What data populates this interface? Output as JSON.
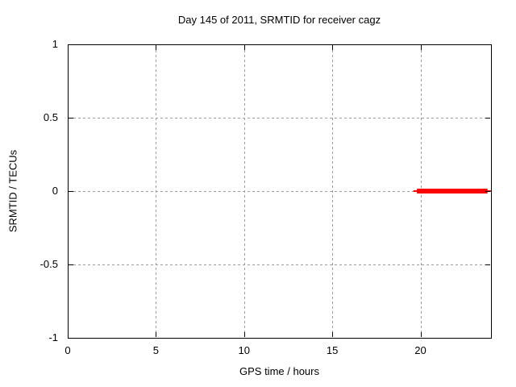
{
  "window": {
    "background_color": "#ffffff"
  },
  "chart_data": {
    "type": "line",
    "title": "Day 145 of 2011, SRMTID for receiver cagz",
    "xlabel": "GPS time / hours",
    "ylabel": "SRMTID / TECUs",
    "xlim": [
      0,
      24
    ],
    "ylim": [
      -1,
      1
    ],
    "xticks": [
      0,
      5,
      10,
      15,
      20
    ],
    "xtick_labels": [
      "0",
      "5",
      "10",
      "15",
      "20"
    ],
    "yticks": [
      -1,
      -0.5,
      0,
      0.5,
      1
    ],
    "ytick_labels": [
      "-1",
      "-0.5",
      "0",
      "0.5",
      "1"
    ],
    "grid": "on",
    "grid_style": "dashed",
    "grid_color": "#9b9b9b",
    "axis_color": "#000000",
    "legend": "none",
    "series": [
      {
        "name": "SRMTID",
        "color": "#ff0000",
        "style": "thick-horizontal-segment",
        "y": 0,
        "x_start": 19.6,
        "x_end": 24.0,
        "core_x_start": 19.8,
        "core_x_end": 23.8,
        "core_thickness_px": 6,
        "cap_thickness_px": 2
      }
    ]
  }
}
